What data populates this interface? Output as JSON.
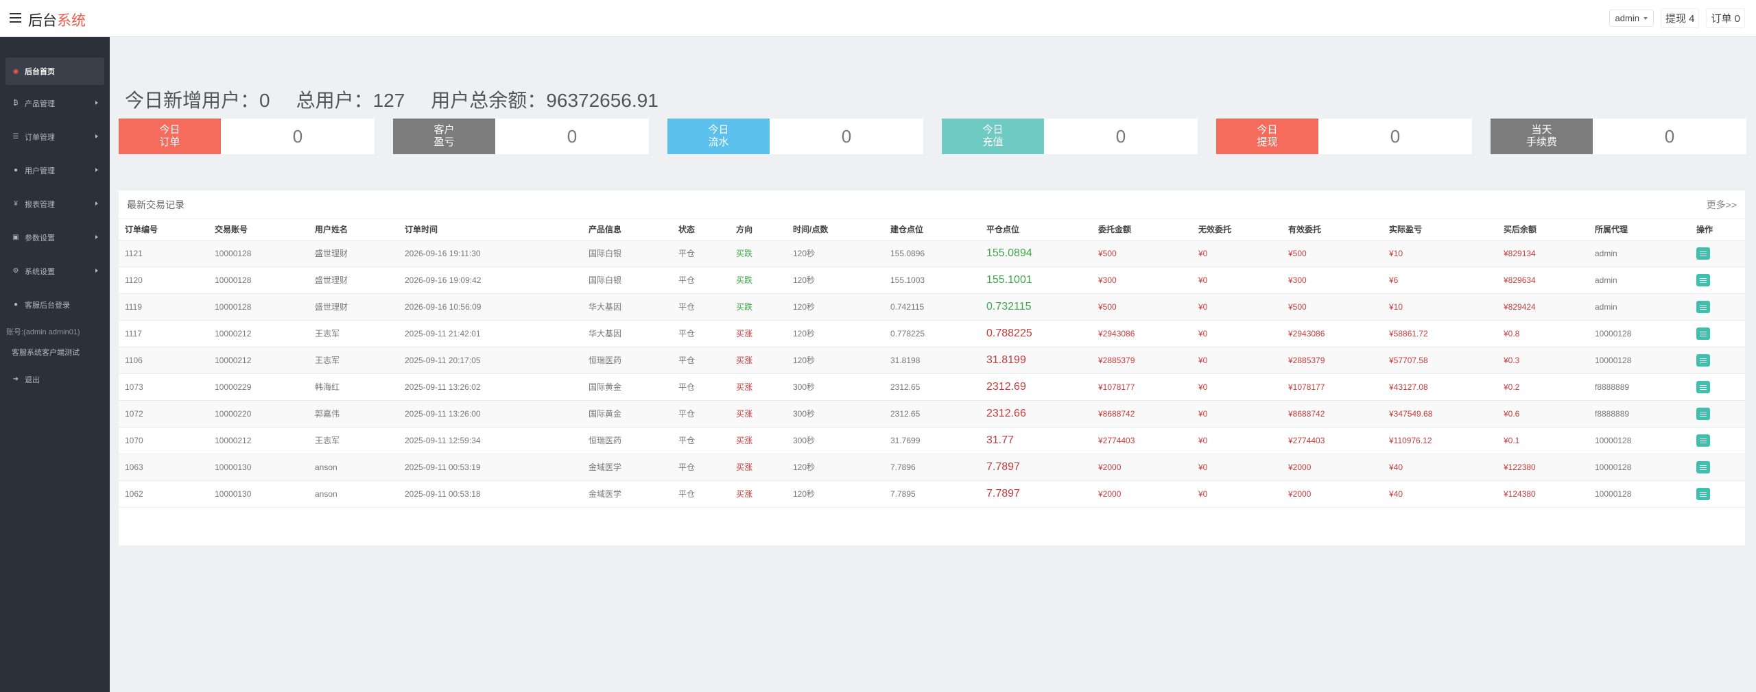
{
  "header": {
    "brand_main": "后台",
    "brand_accent": "系统",
    "admin_label": "admin",
    "withdraw_label": "提现 4",
    "order_label": "订单 0"
  },
  "sidebar": {
    "items": [
      {
        "label": "后台首页",
        "icon": "dashboard-icon"
      },
      {
        "label": "产品管理",
        "icon": "bitcoin-icon"
      },
      {
        "label": "订单管理",
        "icon": "list-icon"
      },
      {
        "label": "用户管理",
        "icon": "user-icon"
      },
      {
        "label": "报表管理",
        "icon": "yen-icon"
      },
      {
        "label": "参数设置",
        "icon": "settings-icon"
      },
      {
        "label": "系统设置",
        "icon": "gears-icon"
      },
      {
        "label": "客服后台登录",
        "icon": "user-icon"
      }
    ],
    "account_note": "账号:(admin admin01)",
    "test_link": "客服系统客户端测试",
    "logout": "退出"
  },
  "summary": {
    "new_users": "今日新增用户：0",
    "total_users": "总用户：127",
    "total_balance": "用户总余额：96372656.91"
  },
  "cards": [
    {
      "label": "今日\n订单",
      "value": "0",
      "color": "#f56c5d"
    },
    {
      "label": "客户\n盈亏",
      "value": "0",
      "color": "#7c7c7c"
    },
    {
      "label": "今日\n流水",
      "value": "0",
      "color": "#5bc0eb"
    },
    {
      "label": "今日\n充值",
      "value": "0",
      "color": "#6ecac2"
    },
    {
      "label": "今日\n提现",
      "value": "0",
      "color": "#f56c5d"
    },
    {
      "label": "当天\n手续费",
      "value": "0",
      "color": "#7c7c7c"
    }
  ],
  "table": {
    "title": "最新交易记录",
    "more": "更多>>",
    "columns": [
      "订单编号",
      "交易账号",
      "用户姓名",
      "订单时间",
      "产品信息",
      "状态",
      "方向",
      "时间/点数",
      "建仓点位",
      "平仓点位",
      "委托金额",
      "无效委托",
      "有效委托",
      "实际盈亏",
      "买后余额",
      "所属代理",
      "操作"
    ],
    "rows": [
      {
        "id": "1121",
        "account": "10000128",
        "name": "盛世理财",
        "time": "2026-09-16 19:11:30",
        "product": "国际白银",
        "status": "平仓",
        "dir": "买跌",
        "dir_color": "green",
        "period": "120秒",
        "open": "155.0896",
        "close": "155.0894",
        "amount": "¥500",
        "invalid": "¥0",
        "valid": "¥500",
        "profit": "¥10",
        "balance": "¥829134",
        "agent": "admin"
      },
      {
        "id": "1120",
        "account": "10000128",
        "name": "盛世理财",
        "time": "2026-09-16 19:09:42",
        "product": "国际白银",
        "status": "平仓",
        "dir": "买跌",
        "dir_color": "green",
        "period": "120秒",
        "open": "155.1003",
        "close": "155.1001",
        "amount": "¥300",
        "invalid": "¥0",
        "valid": "¥300",
        "profit": "¥6",
        "balance": "¥829634",
        "agent": "admin"
      },
      {
        "id": "1119",
        "account": "10000128",
        "name": "盛世理财",
        "time": "2026-09-16 10:56:09",
        "product": "华大基因",
        "status": "平仓",
        "dir": "买跌",
        "dir_color": "green",
        "period": "120秒",
        "open": "0.742115",
        "close": "0.732115",
        "amount": "¥500",
        "invalid": "¥0",
        "valid": "¥500",
        "profit": "¥10",
        "balance": "¥829424",
        "agent": "admin"
      },
      {
        "id": "1117",
        "account": "10000212",
        "name": "王志军",
        "time": "2025-09-11 21:42:01",
        "product": "华大基因",
        "status": "平仓",
        "dir": "买涨",
        "dir_color": "red",
        "period": "120秒",
        "open": "0.778225",
        "close": "0.788225",
        "amount": "¥2943086",
        "invalid": "¥0",
        "valid": "¥2943086",
        "profit": "¥58861.72",
        "balance": "¥0.8",
        "agent": "10000128"
      },
      {
        "id": "1106",
        "account": "10000212",
        "name": "王志军",
        "time": "2025-09-11 20:17:05",
        "product": "恒瑞医药",
        "status": "平仓",
        "dir": "买涨",
        "dir_color": "red",
        "period": "120秒",
        "open": "31.8198",
        "close": "31.8199",
        "amount": "¥2885379",
        "invalid": "¥0",
        "valid": "¥2885379",
        "profit": "¥57707.58",
        "balance": "¥0.3",
        "agent": "10000128"
      },
      {
        "id": "1073",
        "account": "10000229",
        "name": "韩海红",
        "time": "2025-09-11 13:26:02",
        "product": "国际黄金",
        "status": "平仓",
        "dir": "买涨",
        "dir_color": "red",
        "period": "300秒",
        "open": "2312.65",
        "close": "2312.69",
        "amount": "¥1078177",
        "invalid": "¥0",
        "valid": "¥1078177",
        "profit": "¥43127.08",
        "balance": "¥0.2",
        "agent": "f8888889"
      },
      {
        "id": "1072",
        "account": "10000220",
        "name": "郭嘉伟",
        "time": "2025-09-11 13:26:00",
        "product": "国际黄金",
        "status": "平仓",
        "dir": "买涨",
        "dir_color": "red",
        "period": "300秒",
        "open": "2312.65",
        "close": "2312.66",
        "amount": "¥8688742",
        "invalid": "¥0",
        "valid": "¥8688742",
        "profit": "¥347549.68",
        "balance": "¥0.6",
        "agent": "f8888889"
      },
      {
        "id": "1070",
        "account": "10000212",
        "name": "王志军",
        "time": "2025-09-11 12:59:34",
        "product": "恒瑞医药",
        "status": "平仓",
        "dir": "买涨",
        "dir_color": "red",
        "period": "300秒",
        "open": "31.7699",
        "close": "31.77",
        "amount": "¥2774403",
        "invalid": "¥0",
        "valid": "¥2774403",
        "profit": "¥110976.12",
        "balance": "¥0.1",
        "agent": "10000128"
      },
      {
        "id": "1063",
        "account": "10000130",
        "name": "anson",
        "time": "2025-09-11 00:53:19",
        "product": "金域医学",
        "status": "平仓",
        "dir": "买涨",
        "dir_color": "red",
        "period": "120秒",
        "open": "7.7896",
        "close": "7.7897",
        "amount": "¥2000",
        "invalid": "¥0",
        "valid": "¥2000",
        "profit": "¥40",
        "balance": "¥122380",
        "agent": "10000128"
      },
      {
        "id": "1062",
        "account": "10000130",
        "name": "anson",
        "time": "2025-09-11 00:53:18",
        "product": "金域医学",
        "status": "平仓",
        "dir": "买涨",
        "dir_color": "red",
        "period": "120秒",
        "open": "7.7895",
        "close": "7.7897",
        "amount": "¥2000",
        "invalid": "¥0",
        "valid": "¥2000",
        "profit": "¥40",
        "balance": "¥124380",
        "agent": "10000128"
      }
    ]
  }
}
